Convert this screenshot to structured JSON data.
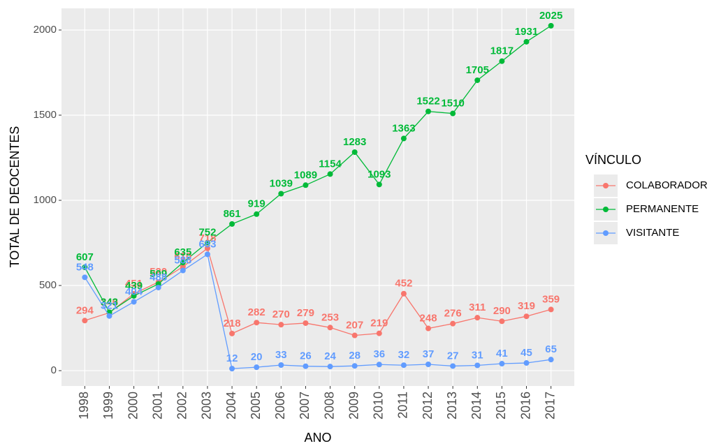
{
  "chart_data": {
    "type": "line",
    "x_label": "ANO",
    "y_label": "TOTAL DE DEOCENTES",
    "legend_title": "VÍNCULO",
    "x": [
      1998,
      1999,
      2000,
      2001,
      2002,
      2003,
      2004,
      2005,
      2006,
      2007,
      2008,
      2009,
      2010,
      2011,
      2012,
      2013,
      2014,
      2015,
      2016,
      2017
    ],
    "series": [
      {
        "name": "COLABORADOR",
        "color": "#F8766D",
        "values": [
          294,
          340,
          451,
          520,
          610,
          718,
          218,
          282,
          270,
          279,
          253,
          207,
          219,
          452,
          248,
          276,
          311,
          290,
          319,
          359
        ]
      },
      {
        "name": "PERMANENTE",
        "color": "#00BA38",
        "values": [
          607,
          343,
          439,
          509,
          635,
          752,
          861,
          919,
          1039,
          1089,
          1154,
          1283,
          1093,
          1363,
          1522,
          1510,
          1705,
          1817,
          1931,
          2025
        ]
      },
      {
        "name": "VISITANTE",
        "color": "#619CFF",
        "values": [
          548,
          321,
          404,
          488,
          588,
          683,
          12,
          20,
          33,
          26,
          24,
          28,
          36,
          32,
          37,
          27,
          31,
          41,
          45,
          65
        ]
      }
    ],
    "xlim": [
      1997.05,
      2017.95
    ],
    "xticks": [
      1998,
      1999,
      2000,
      2001,
      2002,
      2003,
      2004,
      2005,
      2006,
      2007,
      2008,
      2009,
      2010,
      2011,
      2012,
      2013,
      2014,
      2015,
      2016,
      2017
    ],
    "ylim": [
      -90,
      2127
    ],
    "yticks": [
      0,
      500,
      1000,
      1500,
      2000
    ],
    "grid": true,
    "legend": "right"
  }
}
